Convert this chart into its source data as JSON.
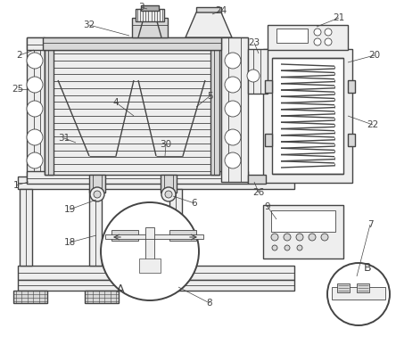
{
  "bg_color": "#ffffff",
  "lc": "#444444",
  "fl": "#eeeeee",
  "fm": "#d8d8d8",
  "fd": "#b0b0b0",
  "lw": 1.0,
  "tlw": 0.6
}
